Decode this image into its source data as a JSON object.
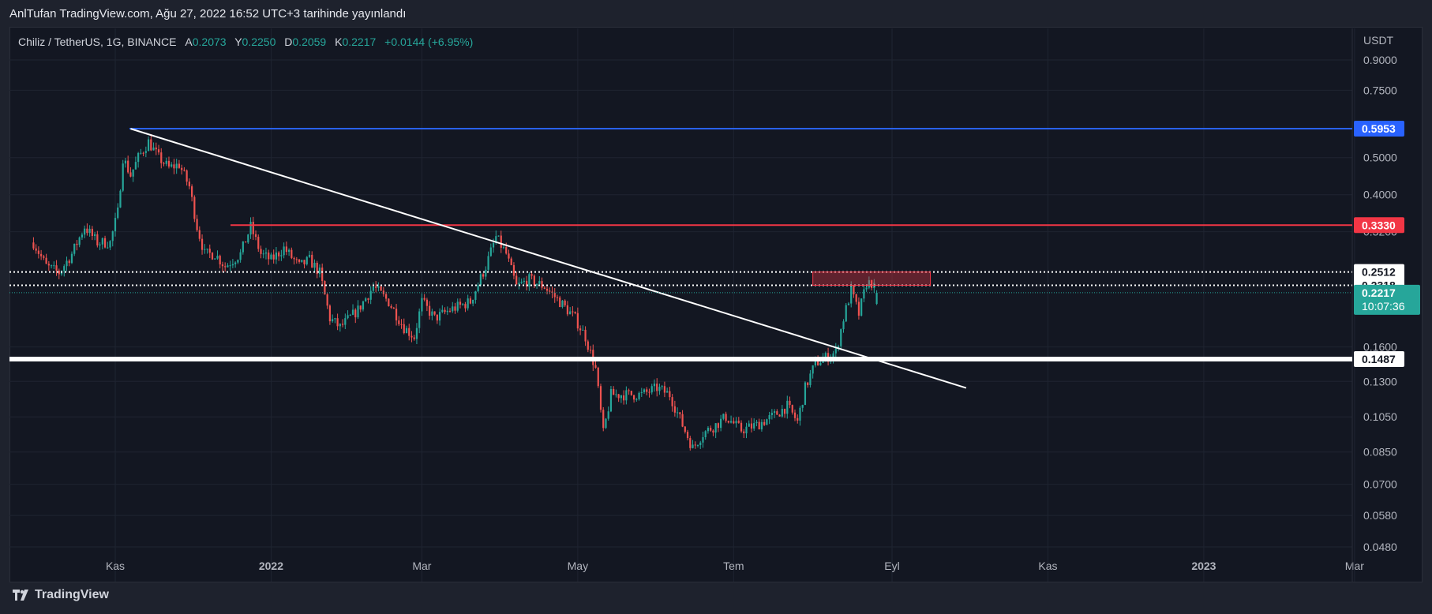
{
  "header": {
    "publish_text": "AnlTufan TradingView.com, Ağu 27, 2022 16:52 UTC+3 tarihinde yayınlandı"
  },
  "symbol": {
    "name": "Chiliz / TetherUS, 1G, BINANCE",
    "open_label": "A",
    "open_value": "0.2073",
    "high_label": "Y",
    "high_value": "0.2250",
    "low_label": "D",
    "low_value": "0.2059",
    "close_label": "K",
    "close_value": "0.2217",
    "change": "+0.0144 (+6.95%)"
  },
  "footer": {
    "brand": "TradingView"
  },
  "colors": {
    "up": "#26a69a",
    "down": "#ef5350",
    "background": "#131722",
    "blue_level": "#2962ff",
    "red_level": "#f23645",
    "support": "#ffffff"
  },
  "chart_data": {
    "type": "candlestick",
    "scale": "log",
    "currency_label": "USDT",
    "y_ticks": [
      "0.9000",
      "0.7500",
      "0.5000",
      "0.4000",
      "0.3200",
      "0.1600",
      "0.1300",
      "0.1050",
      "0.0850",
      "0.0700",
      "0.0580",
      "0.0480"
    ],
    "x_ticks": [
      "Kas",
      "2022",
      "Mar",
      "May",
      "Tem",
      "Eyl",
      "Kas",
      "2023",
      "Mar"
    ],
    "bold_x_ticks": [
      "2022",
      "2023"
    ],
    "levels": [
      {
        "label": "0.5953",
        "value": 0.5953,
        "style": "blue"
      },
      {
        "label": "0.3330",
        "value": 0.333,
        "style": "red"
      },
      {
        "label": "0.2512",
        "value": 0.2512,
        "style": "dotted"
      },
      {
        "label": "0.2318",
        "value": 0.2318,
        "style": "dotted"
      },
      {
        "label": "0.1487",
        "value": 0.1487,
        "style": "thick-white"
      }
    ],
    "last_price": {
      "label": "0.2217",
      "value": 0.2217,
      "countdown": "10:07:36"
    },
    "trendline": {
      "from_date": "2021-11-07",
      "from_value": 0.595,
      "to_date": "2022-09-30",
      "to_value": 0.125
    },
    "resistance_zone": {
      "from_date": "2022-08-01",
      "to_date": "2022-09-16",
      "low": 0.2318,
      "high": 0.2512
    },
    "close_path": [
      [
        "2021-09-30",
        0.3
      ],
      [
        "2021-10-05",
        0.26
      ],
      [
        "2021-10-10",
        0.25
      ],
      [
        "2021-10-15",
        0.28
      ],
      [
        "2021-10-20",
        0.33
      ],
      [
        "2021-10-25",
        0.3
      ],
      [
        "2021-10-30",
        0.3
      ],
      [
        "2021-11-02",
        0.36
      ],
      [
        "2021-11-04",
        0.5
      ],
      [
        "2021-11-07",
        0.45
      ],
      [
        "2021-11-10",
        0.5
      ],
      [
        "2021-11-14",
        0.55
      ],
      [
        "2021-11-18",
        0.5
      ],
      [
        "2021-11-22",
        0.47
      ],
      [
        "2021-11-26",
        0.48
      ],
      [
        "2021-11-30",
        0.42
      ],
      [
        "2021-12-03",
        0.33
      ],
      [
        "2021-12-06",
        0.28
      ],
      [
        "2021-12-10",
        0.28
      ],
      [
        "2021-12-14",
        0.26
      ],
      [
        "2021-12-20",
        0.28
      ],
      [
        "2021-12-24",
        0.33
      ],
      [
        "2021-12-28",
        0.28
      ],
      [
        "2022-01-01",
        0.27
      ],
      [
        "2022-01-06",
        0.29
      ],
      [
        "2022-01-12",
        0.26
      ],
      [
        "2022-01-16",
        0.27
      ],
      [
        "2022-01-20",
        0.25
      ],
      [
        "2022-01-24",
        0.19
      ],
      [
        "2022-01-28",
        0.18
      ],
      [
        "2022-02-04",
        0.2
      ],
      [
        "2022-02-10",
        0.23
      ],
      [
        "2022-02-16",
        0.21
      ],
      [
        "2022-02-22",
        0.18
      ],
      [
        "2022-02-26",
        0.17
      ],
      [
        "2022-03-01",
        0.21
      ],
      [
        "2022-03-06",
        0.19
      ],
      [
        "2022-03-12",
        0.2
      ],
      [
        "2022-03-20",
        0.21
      ],
      [
        "2022-03-26",
        0.26
      ],
      [
        "2022-03-30",
        0.31
      ],
      [
        "2022-04-03",
        0.28
      ],
      [
        "2022-04-07",
        0.23
      ],
      [
        "2022-04-12",
        0.24
      ],
      [
        "2022-04-18",
        0.23
      ],
      [
        "2022-04-24",
        0.21
      ],
      [
        "2022-04-30",
        0.19
      ],
      [
        "2022-05-04",
        0.17
      ],
      [
        "2022-05-08",
        0.14
      ],
      [
        "2022-05-11",
        0.095
      ],
      [
        "2022-05-14",
        0.12
      ],
      [
        "2022-05-20",
        0.12
      ],
      [
        "2022-05-26",
        0.12
      ],
      [
        "2022-06-01",
        0.125
      ],
      [
        "2022-06-06",
        0.12
      ],
      [
        "2022-06-11",
        0.1
      ],
      [
        "2022-06-15",
        0.087
      ],
      [
        "2022-06-19",
        0.095
      ],
      [
        "2022-06-24",
        0.1
      ],
      [
        "2022-06-28",
        0.105
      ],
      [
        "2022-07-04",
        0.097
      ],
      [
        "2022-07-10",
        0.1
      ],
      [
        "2022-07-16",
        0.105
      ],
      [
        "2022-07-22",
        0.112
      ],
      [
        "2022-07-26",
        0.102
      ],
      [
        "2022-07-29",
        0.125
      ],
      [
        "2022-08-02",
        0.145
      ],
      [
        "2022-08-06",
        0.15
      ],
      [
        "2022-08-10",
        0.155
      ],
      [
        "2022-08-13",
        0.19
      ],
      [
        "2022-08-16",
        0.225
      ],
      [
        "2022-08-19",
        0.195
      ],
      [
        "2022-08-22",
        0.235
      ],
      [
        "2022-08-24",
        0.235
      ],
      [
        "2022-08-26",
        0.2217
      ]
    ]
  }
}
